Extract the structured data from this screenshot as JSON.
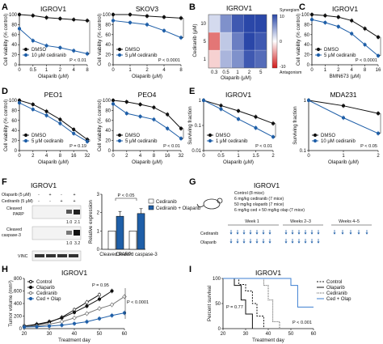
{
  "colors": {
    "black": "#111111",
    "blue": "#1f5fa8",
    "gray": "#777777",
    "light_blue_fill": "#ffffff"
  },
  "panels": {
    "A": {
      "label": "A"
    },
    "B": {
      "label": "B",
      "title": "IGROV1",
      "xlabel": "Olaparib (μM)",
      "ylabel": "Cediranib (μM)",
      "x_ticks": [
        "0.3",
        "0.5",
        "1",
        "2",
        "5"
      ],
      "y_ticks": [
        "1",
        "5",
        "10"
      ],
      "legend_synergy": "Synergism",
      "legend_antagonism": "Antagonism",
      "cb_ticks": [
        "10",
        "0",
        "-10"
      ]
    },
    "C": {
      "label": "C"
    },
    "D": {
      "label": "D"
    },
    "E": {
      "label": "E"
    },
    "F": {
      "label": "F",
      "title": "IGROV1",
      "row_olaparib": "Olaparib (5 μM)",
      "row_cediranib": "Cediranib (5 μM)",
      "signs_olaparib": [
        "-",
        "+",
        "-",
        "+"
      ],
      "signs_cediranib": [
        "-",
        "-",
        "+",
        "+"
      ],
      "band_cparp": "Cleaved PARP",
      "band_ccasp": "Cleaved caspase-3",
      "band_vinc": "VINC",
      "quant_cparp": [
        "1.0",
        "2.1"
      ],
      "quant_ccasp": [
        "1.0",
        "3.2"
      ]
    },
    "G": {
      "label": "G",
      "title": "IGROV1",
      "groups": [
        "Control (8 mice)",
        "6 mg/kg cediranib (7 mice)",
        "50 mg/kg olaparib (7 mice)",
        "6 mg/kg ced + 50 mg/kg olap (7 mice)"
      ],
      "weeks": [
        "Week 1",
        "Weeks 2–3",
        "Weeks 4–5"
      ],
      "row_cediranib": "Cediranib",
      "row_olaparib": "Olaparib"
    },
    "H": {
      "label": "H"
    },
    "I": {
      "label": "I"
    }
  },
  "chart_data": [
    {
      "id": "A1",
      "type": "line",
      "title": "IGROV1",
      "xlabel": "Olaparib (μM)",
      "ylabel": "Cell viability (% control)",
      "x": [
        "0",
        "0.5",
        "1",
        "2",
        "4",
        "8"
      ],
      "ylim": [
        0,
        100
      ],
      "yticks": [
        "0",
        "20",
        "40",
        "60",
        "80",
        "100"
      ],
      "series": [
        {
          "name": "DMSO",
          "values": [
            100,
            98,
            94,
            92,
            90,
            88
          ]
        },
        {
          "name": "10 μM cediranib",
          "values": [
            72,
            48,
            38,
            34,
            28,
            22
          ]
        }
      ],
      "annotations": [
        "P < 0.01"
      ]
    },
    {
      "id": "A2",
      "type": "line",
      "title": "SKOV3",
      "xlabel": "Olaparib (μM)",
      "ylabel": "Cell viability (% control)",
      "x": [
        "0",
        "1",
        "2",
        "4",
        "8"
      ],
      "ylim": [
        0,
        100
      ],
      "yticks": [
        "0",
        "20",
        "40",
        "60",
        "80",
        "100"
      ],
      "series": [
        {
          "name": "DMSO",
          "values": [
            100,
            100,
            97,
            95,
            93
          ]
        },
        {
          "name": "5 μM cediranib",
          "values": [
            88,
            84,
            80,
            68,
            54
          ]
        }
      ],
      "annotations": [
        "P < 0.0001"
      ]
    },
    {
      "id": "B",
      "type": "heatmap",
      "title": "IGROV1",
      "x": [
        "0.3",
        "0.5",
        "1",
        "2",
        "5"
      ],
      "y": [
        "1",
        "5",
        "10"
      ],
      "values": [
        [
          -2,
          4,
          6,
          9,
          8
        ],
        [
          -6,
          3,
          7,
          10,
          9
        ],
        [
          2,
          6,
          9,
          11,
          10
        ]
      ],
      "scale": [
        -10,
        10
      ]
    },
    {
      "id": "C",
      "type": "line",
      "title": "IGROV1",
      "xlabel": "BMN673 (μM)",
      "ylabel": "Cell viability (% control)",
      "x": [
        "0",
        "1",
        "2",
        "4",
        "8",
        "16"
      ],
      "ylim": [
        0,
        100
      ],
      "yticks": [
        "0",
        "20",
        "40",
        "60",
        "80",
        "100"
      ],
      "series": [
        {
          "name": "DMSO",
          "values": [
            100,
            98,
            95,
            88,
            72,
            55
          ]
        },
        {
          "name": "5 μM cediranib",
          "values": [
            90,
            84,
            76,
            62,
            40,
            18
          ]
        }
      ],
      "annotations": [
        "P < 0.0001"
      ]
    },
    {
      "id": "D1",
      "type": "line",
      "title": "PEO1",
      "xlabel": "Olaparib (μM)",
      "ylabel": "Cell viability (% control)",
      "x": [
        "0",
        "2",
        "4",
        "8",
        "16",
        "32"
      ],
      "ylim": [
        0,
        100
      ],
      "yticks": [
        "0",
        "20",
        "40",
        "60",
        "80",
        "100"
      ],
      "series": [
        {
          "name": "DMSO",
          "values": [
            100,
            92,
            78,
            62,
            42,
            22
          ]
        },
        {
          "name": "5 μM cediranib",
          "values": [
            95,
            82,
            70,
            54,
            34,
            18
          ]
        }
      ],
      "annotations": [
        "P = 0.19"
      ]
    },
    {
      "id": "D2",
      "type": "line",
      "title": "PEO4",
      "xlabel": "Olaparib (μM)",
      "ylabel": "Cell viability (% control)",
      "x": [
        "0",
        "2",
        "4",
        "8",
        "16",
        "32"
      ],
      "ylim": [
        0,
        100
      ],
      "yticks": [
        "0",
        "20",
        "40",
        "60",
        "80",
        "100"
      ],
      "series": [
        {
          "name": "DMSO",
          "values": [
            100,
            97,
            92,
            86,
            72,
            44
          ]
        },
        {
          "name": "5 μM cediranib",
          "values": [
            93,
            74,
            68,
            62,
            44,
            24
          ]
        }
      ],
      "annotations": [
        "P < 0.01"
      ]
    },
    {
      "id": "E1",
      "type": "line",
      "title": "IGROV1",
      "xlabel": "Olaparib (μM)",
      "ylabel": "Surviving fraction",
      "x": [
        "0",
        "0.5",
        "1",
        "1.5",
        "2"
      ],
      "ylim": [
        0.01,
        1
      ],
      "yscale": "log",
      "yticks": [
        "0.01",
        "0.1",
        "1"
      ],
      "series": [
        {
          "name": "DMSO",
          "values": [
            1.0,
            0.62,
            0.38,
            0.22,
            0.12
          ]
        },
        {
          "name": "1 μM cediranib",
          "values": [
            1.0,
            0.45,
            0.18,
            0.08,
            0.035
          ]
        }
      ],
      "annotations": [
        "P < 0.01"
      ]
    },
    {
      "id": "E2",
      "type": "line",
      "title": "MDA231",
      "xlabel": "Olaparib (μM)",
      "ylabel": "Surviving fraction",
      "x": [
        "0",
        "1",
        "2"
      ],
      "ylim": [
        0.1,
        1
      ],
      "yscale": "log",
      "yticks": [
        "0.1",
        "1"
      ],
      "series": [
        {
          "name": "DMSO",
          "values": [
            1.0,
            0.78,
            0.55
          ]
        },
        {
          "name": "10 μM cediranib",
          "values": [
            1.0,
            0.45,
            0.22
          ]
        }
      ],
      "annotations": [
        "P < 0.05"
      ]
    },
    {
      "id": "F",
      "type": "bar",
      "ylabel": "Relative expression",
      "categories": [
        "Cleaved PARP",
        "Cleaved caspase-3"
      ],
      "ylim": [
        0,
        3
      ],
      "yticks": [
        "0",
        "1",
        "2",
        "3"
      ],
      "series": [
        {
          "name": "Cediranib",
          "values": [
            1.0,
            1.0
          ]
        },
        {
          "name": "Cediranib + Olaparib",
          "values": [
            1.8,
            1.95
          ]
        }
      ],
      "annotations": [
        "P < 0.05"
      ]
    },
    {
      "id": "H",
      "type": "line",
      "title": "IGROV1",
      "xlabel": "Treatment day",
      "ylabel": "Tumor volume (mm³)",
      "x": [
        20,
        25,
        30,
        35,
        40,
        45,
        50,
        55,
        60
      ],
      "ylim": [
        0,
        800
      ],
      "yticks": [
        "0",
        "200",
        "400",
        "600",
        "800"
      ],
      "xticks": [
        "20",
        "30",
        "40",
        "50",
        "60"
      ],
      "series": [
        {
          "name": "Control",
          "values": [
            40,
            60,
            100,
            180,
            300,
            420,
            540,
            null,
            null
          ]
        },
        {
          "name": "Olaparib",
          "values": [
            40,
            70,
            110,
            170,
            260,
            360,
            470,
            600,
            null
          ]
        },
        {
          "name": "Cediranib",
          "values": [
            30,
            40,
            70,
            110,
            170,
            240,
            320,
            380,
            510
          ]
        },
        {
          "name": "Ced + Olap",
          "values": [
            25,
            30,
            40,
            55,
            80,
            110,
            160,
            210,
            250
          ]
        }
      ],
      "annotations": [
        "P = 0.95",
        "P < 0.0001"
      ]
    },
    {
      "id": "I",
      "type": "line",
      "title": "IGROV1",
      "xlabel": "Treatment day",
      "ylabel": "Percent survival",
      "xlim": [
        20,
        60
      ],
      "ylim": [
        0,
        100
      ],
      "yticks": [
        "0",
        "50",
        "100"
      ],
      "xticks": [
        "20",
        "30",
        "40",
        "50",
        "60"
      ],
      "series": [
        {
          "name": "Control",
          "points": [
            [
              20,
              100
            ],
            [
              27,
              100
            ],
            [
              27,
              88
            ],
            [
              30,
              88
            ],
            [
              30,
              75
            ],
            [
              33,
              75
            ],
            [
              33,
              50
            ],
            [
              35,
              50
            ],
            [
              35,
              25
            ],
            [
              38,
              25
            ],
            [
              38,
              0
            ]
          ]
        },
        {
          "name": "Olaparib",
          "points": [
            [
              20,
              100
            ],
            [
              25,
              100
            ],
            [
              25,
              86
            ],
            [
              28,
              86
            ],
            [
              28,
              57
            ],
            [
              30,
              57
            ],
            [
              30,
              29
            ],
            [
              33,
              29
            ],
            [
              33,
              0
            ]
          ]
        },
        {
          "name": "Cediranib",
          "points": [
            [
              20,
              100
            ],
            [
              38,
              100
            ],
            [
              38,
              86
            ],
            [
              40,
              86
            ],
            [
              40,
              57
            ],
            [
              42,
              57
            ],
            [
              42,
              14
            ],
            [
              45,
              14
            ],
            [
              45,
              0
            ]
          ]
        },
        {
          "name": "Ced + Olap",
          "points": [
            [
              20,
              100
            ],
            [
              50,
              100
            ],
            [
              50,
              86
            ],
            [
              53,
              86
            ],
            [
              53,
              43
            ],
            [
              60,
              43
            ]
          ]
        }
      ],
      "annotations": [
        "P = 0.77",
        "P < 0.001"
      ]
    }
  ]
}
